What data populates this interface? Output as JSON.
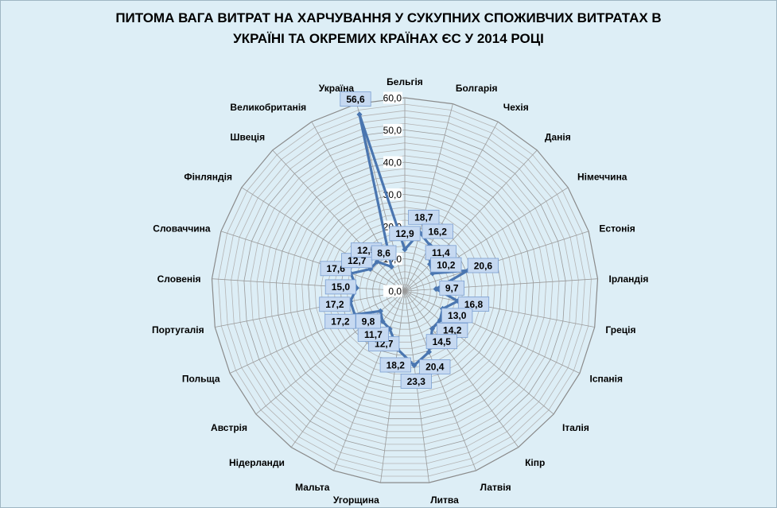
{
  "chart_data": {
    "type": "radar",
    "title_line1": "ПИТОМА ВАГА ВИТРАТ НА ХАРЧУВАННЯ У СУКУПНИХ СПОЖИВЧИХ ВИТРАТАХ  В",
    "title_line2": "УКРАЇНІ ТА ОКРЕМИХ  КРАЇНАХ ЄС У 2014 РОЦІ",
    "categories": [
      "Бельгія",
      "Болгарія",
      "Чехія",
      "Данія",
      "Німеччина",
      "Естонія",
      "Ірландія",
      "Греція",
      "Іспанія",
      "Італія",
      "Кіпр",
      "Латвія",
      "Литва",
      "Угорщина",
      "Мальта",
      "Нідерланди",
      "Австрія",
      "Польща",
      "Португалія",
      "Словенія",
      "Словаччина",
      "Фінляндія",
      "Швеція",
      "Великобританія",
      "Україна"
    ],
    "values": [
      12.9,
      18.7,
      16.2,
      11.4,
      10.2,
      20.6,
      9.7,
      16.8,
      13.0,
      14.2,
      14.5,
      20.4,
      23.3,
      18.2,
      12.7,
      11.7,
      9.8,
      17.2,
      17.2,
      15.0,
      17.6,
      12.7,
      12.5,
      8.6,
      56.6
    ],
    "data_labels": [
      "12,9",
      "18,7",
      "16,2",
      "11,4",
      "10,2",
      "20,6",
      "9,7",
      "16,8",
      "13,0",
      "14,2",
      "14,5",
      "20,4",
      "23,3",
      "18,2",
      "12,7",
      "11,7",
      "9,8",
      "17,2",
      "17,2",
      "15,0",
      "17,6",
      "12,7",
      "12,5",
      "8,6",
      "56,6"
    ],
    "r_ticks": [
      "0,0",
      "10,0",
      "20,0",
      "30,0",
      "40,0",
      "50,0",
      "60,0"
    ],
    "rlim": [
      0,
      60
    ],
    "minor_grid_step": 2,
    "series_color": "#4a76b0",
    "label_fill": "#c6d9f1",
    "label_stroke": "#7a9fd3",
    "grid": true
  }
}
